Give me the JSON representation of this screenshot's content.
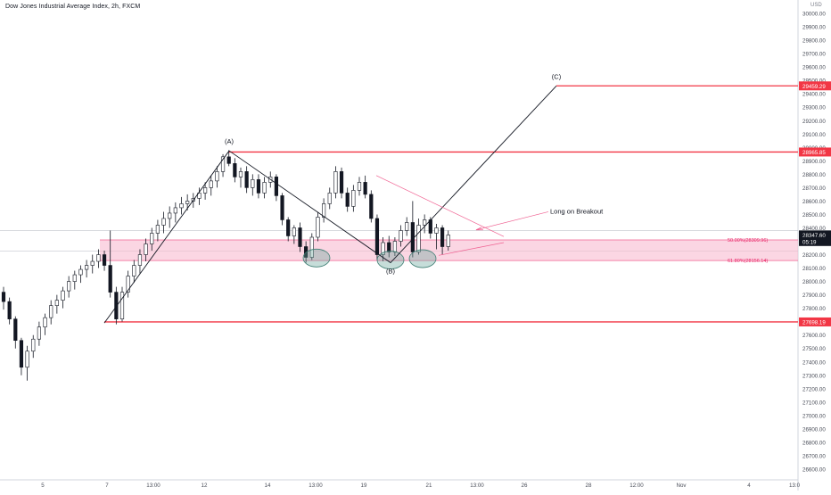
{
  "header": {
    "symbol_title": "Dow Jones Industrial Average Index, 2h, FXCM",
    "currency": "USD"
  },
  "colors": {
    "up": "#ffffff",
    "down": "#131722",
    "wick": "#131722",
    "level": "#f23645",
    "zone_fill": "#f8bbd0",
    "zone_edge": "#f06292",
    "wave": "#131722",
    "ellipse": "#6aa69a",
    "arrow": "#f06292"
  },
  "chart_data": {
    "type": "candlestick",
    "title": "Dow Jones Industrial Average Index, 2h, FXCM",
    "x_axis": {
      "tick_labels": [
        "5",
        "7",
        "13:00",
        "12",
        "14",
        "13:00",
        "19",
        "21",
        "13:00",
        "26",
        "28",
        "12:00",
        "Nov",
        "4",
        "13:0"
      ]
    },
    "y_axis": {
      "range": [
        26520,
        30100
      ],
      "tick_labels": [
        "30000.00",
        "29900.00",
        "29800.00",
        "29700.00",
        "29600.00",
        "29500.00",
        "29400.00",
        "29300.00",
        "29200.00",
        "29100.00",
        "29000.00",
        "28900.00",
        "28800.00",
        "28700.00",
        "28600.00",
        "28500.00",
        "28400.00",
        "28300.00",
        "28200.00",
        "28100.00",
        "28000.00",
        "27900.00",
        "27800.00",
        "27700.00",
        "27600.00",
        "27500.00",
        "27400.00",
        "27300.00",
        "27200.00",
        "27100.00",
        "27000.00",
        "26900.00",
        "26800.00",
        "26700.00",
        "26600.00"
      ]
    },
    "price_labels": [
      {
        "text": "29459.29",
        "value": 29459.29,
        "style": "red"
      },
      {
        "text": "28965.85",
        "value": 28965.85,
        "style": "red"
      },
      {
        "text": "28347.60",
        "value": 28347.6,
        "style": "dark"
      },
      {
        "text": "05:19",
        "value": 28298,
        "style": "dark"
      },
      {
        "text": "27698.19",
        "value": 27698.19,
        "style": "red"
      }
    ],
    "horizontal_levels": [
      {
        "value": 29459.29,
        "from_label": "(C)"
      },
      {
        "value": 28965.85,
        "from_label": "(A)"
      },
      {
        "value": 27698.19,
        "from_label": "start"
      }
    ],
    "fib_zone": {
      "top": 28309.96,
      "bottom": 28156.14,
      "top_label": "50.00%(28309.96)",
      "bottom_label": "61.80%(28156.14)"
    },
    "wave_points": [
      {
        "label": "",
        "price": 27690
      },
      {
        "label": "(A)",
        "price": 28975
      },
      {
        "label": "(B)",
        "price": 28140
      },
      {
        "label": "(C)",
        "price": 29459.29
      }
    ],
    "annotation": "Long on Breakout",
    "ohlc_series_approx": [
      [
        27920,
        27960,
        27790,
        27850
      ],
      [
        27850,
        27880,
        27680,
        27720
      ],
      [
        27720,
        27740,
        27500,
        27560
      ],
      [
        27560,
        27580,
        27300,
        27360
      ],
      [
        27360,
        27520,
        27260,
        27480
      ],
      [
        27480,
        27600,
        27430,
        27570
      ],
      [
        27570,
        27700,
        27520,
        27660
      ],
      [
        27660,
        27760,
        27600,
        27730
      ],
      [
        27730,
        27860,
        27680,
        27820
      ],
      [
        27820,
        27900,
        27760,
        27860
      ],
      [
        27860,
        27960,
        27800,
        27930
      ],
      [
        27930,
        28040,
        27880,
        28000
      ],
      [
        28000,
        28080,
        27940,
        28050
      ],
      [
        28050,
        28120,
        27990,
        28090
      ],
      [
        28090,
        28160,
        28030,
        28120
      ],
      [
        28120,
        28200,
        28060,
        28150
      ],
      [
        28150,
        28240,
        28100,
        28200
      ],
      [
        28200,
        28230,
        28080,
        28120
      ],
      [
        28120,
        28380,
        27880,
        27920
      ],
      [
        27920,
        27960,
        27680,
        27720
      ],
      [
        27720,
        27960,
        27700,
        27920
      ],
      [
        27920,
        28080,
        27880,
        28040
      ],
      [
        28040,
        28160,
        27990,
        28120
      ],
      [
        28120,
        28240,
        28060,
        28200
      ],
      [
        28200,
        28320,
        28150,
        28280
      ],
      [
        28280,
        28400,
        28230,
        28360
      ],
      [
        28360,
        28460,
        28300,
        28420
      ],
      [
        28420,
        28520,
        28360,
        28470
      ],
      [
        28470,
        28560,
        28400,
        28510
      ],
      [
        28510,
        28590,
        28440,
        28550
      ],
      [
        28550,
        28630,
        28500,
        28580
      ],
      [
        28580,
        28650,
        28530,
        28600
      ],
      [
        28600,
        28660,
        28550,
        28620
      ],
      [
        28620,
        28700,
        28570,
        28660
      ],
      [
        28660,
        28740,
        28610,
        28700
      ],
      [
        28700,
        28790,
        28640,
        28750
      ],
      [
        28750,
        28860,
        28700,
        28820
      ],
      [
        28820,
        28950,
        28780,
        28930
      ],
      [
        28930,
        28980,
        28860,
        28880
      ],
      [
        28880,
        28920,
        28740,
        28780
      ],
      [
        28780,
        28850,
        28700,
        28820
      ],
      [
        28820,
        28860,
        28660,
        28700
      ],
      [
        28700,
        28800,
        28640,
        28760
      ],
      [
        28760,
        28800,
        28620,
        28660
      ],
      [
        28660,
        28780,
        28620,
        28740
      ],
      [
        28740,
        28820,
        28700,
        28780
      ],
      [
        28780,
        28800,
        28600,
        28640
      ],
      [
        28640,
        28660,
        28420,
        28460
      ],
      [
        28460,
        28480,
        28300,
        28340
      ],
      [
        28340,
        28420,
        28280,
        28400
      ],
      [
        28400,
        28440,
        28220,
        28260
      ],
      [
        28260,
        28300,
        28140,
        28180
      ],
      [
        28180,
        28360,
        28160,
        28330
      ],
      [
        28330,
        28520,
        28300,
        28480
      ],
      [
        28480,
        28620,
        28440,
        28580
      ],
      [
        28580,
        28700,
        28540,
        28660
      ],
      [
        28660,
        28860,
        28620,
        28820
      ],
      [
        28820,
        28850,
        28620,
        28660
      ],
      [
        28660,
        28700,
        28520,
        28560
      ],
      [
        28560,
        28720,
        28520,
        28680
      ],
      [
        28680,
        28780,
        28640,
        28740
      ],
      [
        28740,
        28790,
        28620,
        28650
      ],
      [
        28650,
        28680,
        28440,
        28470
      ],
      [
        28470,
        28500,
        28160,
        28200
      ],
      [
        28200,
        28330,
        28150,
        28290
      ],
      [
        28290,
        28340,
        28180,
        28220
      ],
      [
        28220,
        28330,
        28190,
        28300
      ],
      [
        28300,
        28420,
        28260,
        28380
      ],
      [
        28380,
        28480,
        28340,
        28440
      ],
      [
        28440,
        28600,
        28180,
        28220
      ],
      [
        28220,
        28470,
        28200,
        28420
      ],
      [
        28420,
        28500,
        28360,
        28460
      ],
      [
        28460,
        28480,
        28320,
        28360
      ],
      [
        28360,
        28430,
        28240,
        28400
      ],
      [
        28400,
        28420,
        28200,
        28260
      ],
      [
        28260,
        28380,
        28230,
        28347
      ]
    ]
  }
}
